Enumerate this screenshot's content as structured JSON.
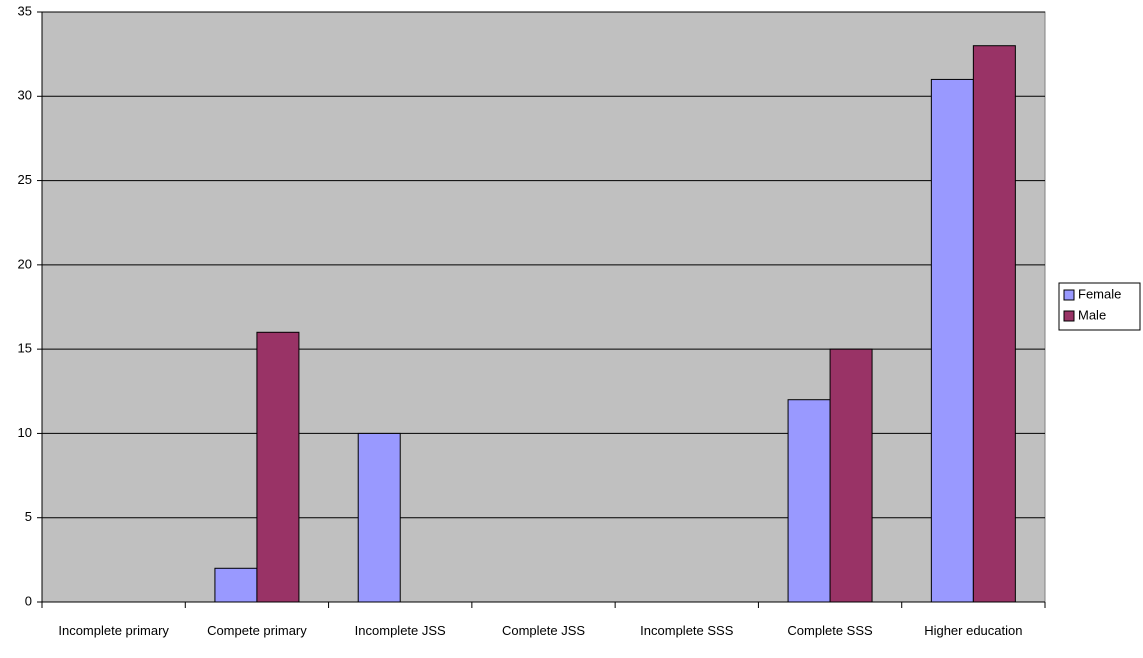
{
  "chart_data": {
    "type": "bar",
    "categories": [
      "Incomplete primary",
      "Compete primary",
      "Incomplete JSS",
      "Complete JSS",
      "Incomplete SSS",
      "Complete SSS",
      "Higher education"
    ],
    "series": [
      {
        "name": "Female",
        "color": "#9999ff",
        "values": [
          0,
          2,
          10,
          0,
          0,
          12,
          31
        ]
      },
      {
        "name": "Male",
        "color": "#993366",
        "values": [
          0,
          16,
          0,
          0,
          0,
          15,
          33
        ]
      }
    ],
    "ylim": [
      0,
      35
    ],
    "yticks": [
      0,
      5,
      10,
      15,
      20,
      25,
      30,
      35
    ],
    "grid": true,
    "legend": "right"
  }
}
